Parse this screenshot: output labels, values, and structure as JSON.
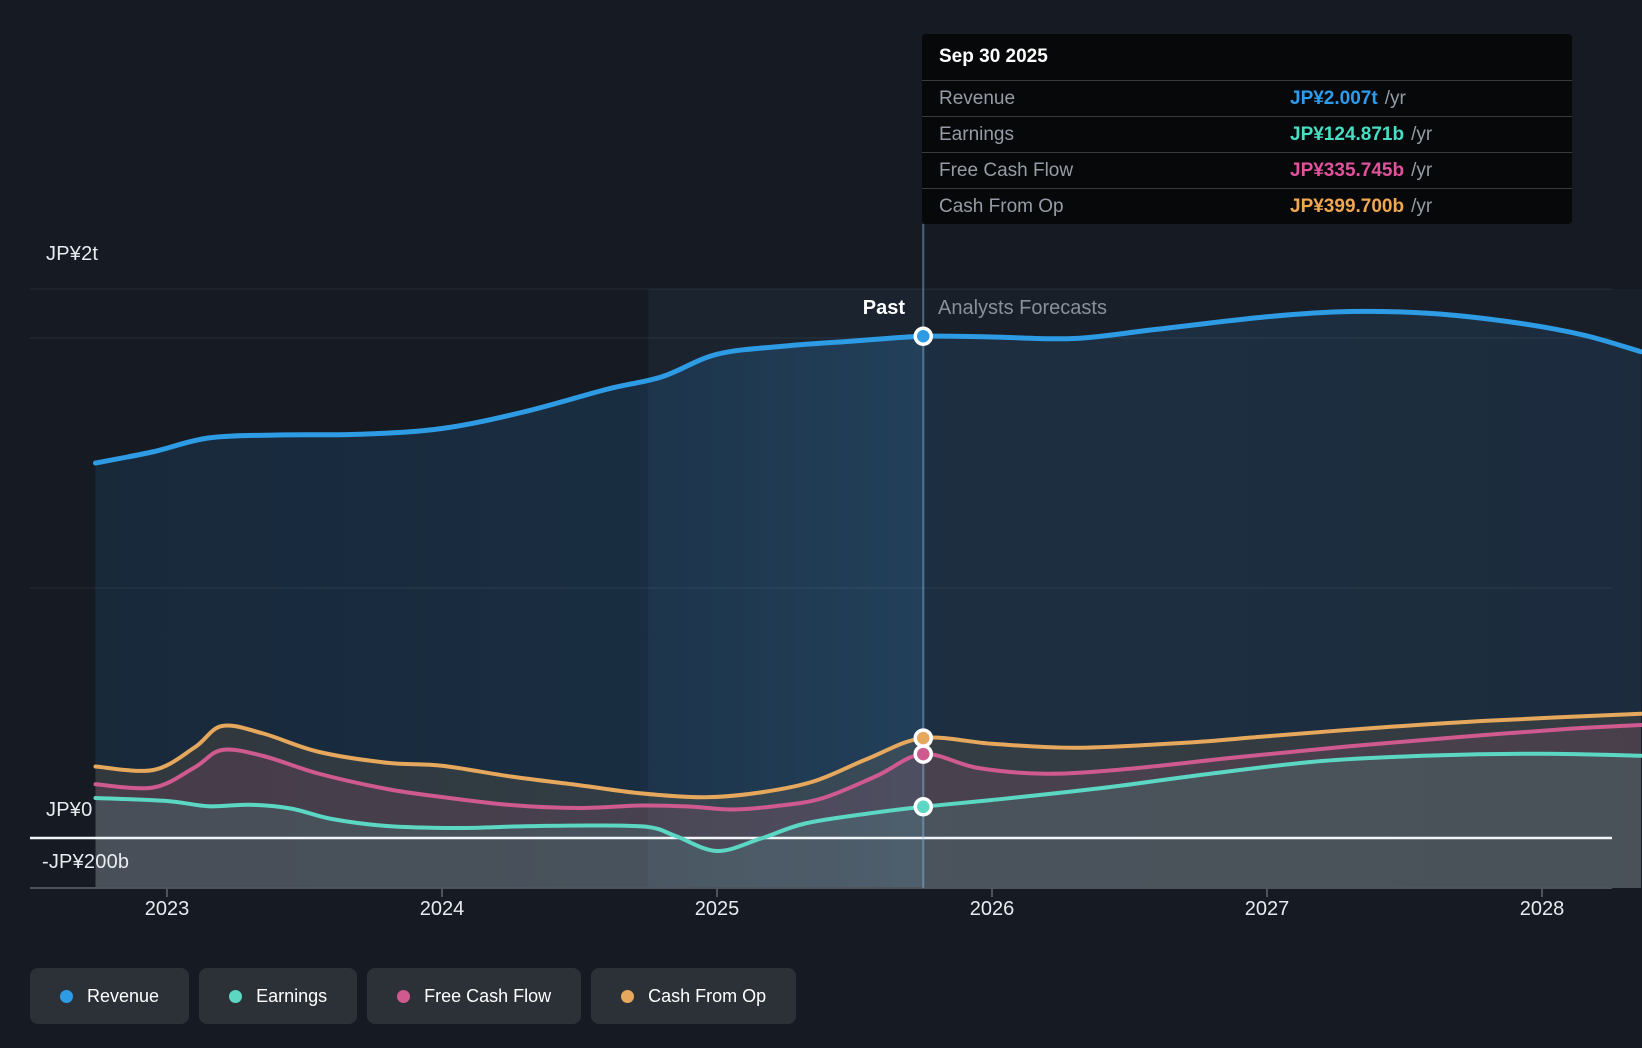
{
  "labels": {
    "past": "Past",
    "forecast": "Analysts Forecasts"
  },
  "tooltip": {
    "date": "Sep 30 2025",
    "rows": [
      {
        "label": "Revenue",
        "value": "JP¥2.007t",
        "suffix": "/yr",
        "color": "#2F9BEC"
      },
      {
        "label": "Earnings",
        "value": "JP¥124.871b",
        "suffix": "/yr",
        "color": "#46DFC4"
      },
      {
        "label": "Free Cash Flow",
        "value": "JP¥335.745b",
        "suffix": "/yr",
        "color": "#E1529D"
      },
      {
        "label": "Cash From Op",
        "value": "JP¥399.700b",
        "suffix": "/yr",
        "color": "#F0A750"
      }
    ]
  },
  "legend": {
    "items": [
      {
        "label": "Revenue",
        "color": "#2E9BE5"
      },
      {
        "label": "Earnings",
        "color": "#5BD7C4"
      },
      {
        "label": "Free Cash Flow",
        "color": "#CE5A90"
      },
      {
        "label": "Cash From Op",
        "color": "#E6A85C"
      }
    ]
  },
  "chart_data": {
    "type": "area",
    "units": "JP¥ billions",
    "x_range": [
      2022.74,
      2028.36
    ],
    "x_ticks": [
      2023,
      2024,
      2025,
      2026,
      2027,
      2028
    ],
    "y_gridlines": [
      {
        "value": 2000,
        "label": "JP¥2t"
      },
      {
        "value": 1000,
        "label": ""
      },
      {
        "value": 0,
        "label": "JP¥0"
      },
      {
        "value": -200,
        "label": "-JP¥200b"
      }
    ],
    "divider_x": 2025.75,
    "highlight_band": [
      2024.75,
      2025.75
    ],
    "series": [
      {
        "key": "revenue",
        "name": "Revenue",
        "color": "#2E9BE5",
        "points": [
          [
            2022.74,
            1500
          ],
          [
            2022.95,
            1545
          ],
          [
            2023.15,
            1600
          ],
          [
            2023.4,
            1612
          ],
          [
            2023.7,
            1615
          ],
          [
            2024.0,
            1638
          ],
          [
            2024.3,
            1705
          ],
          [
            2024.6,
            1795
          ],
          [
            2024.8,
            1845
          ],
          [
            2025.0,
            1935
          ],
          [
            2025.25,
            1968
          ],
          [
            2025.5,
            1988
          ],
          [
            2025.75,
            2007
          ],
          [
            2026.0,
            2004
          ],
          [
            2026.3,
            1998
          ],
          [
            2026.6,
            2035
          ],
          [
            2027.0,
            2085
          ],
          [
            2027.3,
            2106
          ],
          [
            2027.6,
            2098
          ],
          [
            2027.9,
            2062
          ],
          [
            2028.15,
            2012
          ],
          [
            2028.36,
            1945
          ]
        ]
      },
      {
        "key": "cash_from_op",
        "name": "Cash From Op",
        "color": "#E6A85C",
        "points": [
          [
            2022.74,
            286
          ],
          [
            2022.95,
            272
          ],
          [
            2023.1,
            362
          ],
          [
            2023.2,
            448
          ],
          [
            2023.35,
            418
          ],
          [
            2023.55,
            345
          ],
          [
            2023.8,
            301
          ],
          [
            2024.0,
            289
          ],
          [
            2024.25,
            246
          ],
          [
            2024.5,
            211
          ],
          [
            2024.72,
            179
          ],
          [
            2024.95,
            163
          ],
          [
            2025.15,
            181
          ],
          [
            2025.35,
            226
          ],
          [
            2025.55,
            318
          ],
          [
            2025.75,
            399.7
          ],
          [
            2026.0,
            377
          ],
          [
            2026.3,
            361
          ],
          [
            2026.7,
            381
          ],
          [
            2027.0,
            407
          ],
          [
            2027.4,
            441
          ],
          [
            2027.8,
            469
          ],
          [
            2028.36,
            497
          ]
        ]
      },
      {
        "key": "free_cash_flow",
        "name": "Free Cash Flow",
        "color": "#CE5A90",
        "points": [
          [
            2022.74,
            215
          ],
          [
            2022.95,
            202
          ],
          [
            2023.1,
            282
          ],
          [
            2023.2,
            352
          ],
          [
            2023.35,
            328
          ],
          [
            2023.55,
            258
          ],
          [
            2023.8,
            196
          ],
          [
            2024.0,
            164
          ],
          [
            2024.25,
            132
          ],
          [
            2024.5,
            120
          ],
          [
            2024.72,
            130
          ],
          [
            2024.9,
            126
          ],
          [
            2025.05,
            114
          ],
          [
            2025.2,
            126
          ],
          [
            2025.38,
            158
          ],
          [
            2025.58,
            248
          ],
          [
            2025.75,
            335.745
          ],
          [
            2025.95,
            280
          ],
          [
            2026.2,
            257
          ],
          [
            2026.5,
            277
          ],
          [
            2026.9,
            324
          ],
          [
            2027.3,
            367
          ],
          [
            2027.7,
            404
          ],
          [
            2028.1,
            437
          ],
          [
            2028.36,
            452
          ]
        ]
      },
      {
        "key": "earnings",
        "name": "Earnings",
        "color": "#5BD7C4",
        "points": [
          [
            2022.74,
            160
          ],
          [
            2023.0,
            148
          ],
          [
            2023.15,
            127
          ],
          [
            2023.3,
            133
          ],
          [
            2023.45,
            118
          ],
          [
            2023.6,
            76
          ],
          [
            2023.8,
            48
          ],
          [
            2024.05,
            40
          ],
          [
            2024.3,
            47
          ],
          [
            2024.55,
            50
          ],
          [
            2024.75,
            44
          ],
          [
            2024.85,
            8
          ],
          [
            2025.0,
            -52
          ],
          [
            2025.16,
            -2
          ],
          [
            2025.32,
            58
          ],
          [
            2025.55,
            98
          ],
          [
            2025.75,
            124.871
          ],
          [
            2026.0,
            152
          ],
          [
            2026.4,
            200
          ],
          [
            2026.8,
            258
          ],
          [
            2027.2,
            308
          ],
          [
            2027.6,
            330
          ],
          [
            2028.0,
            337
          ],
          [
            2028.36,
            329
          ]
        ]
      }
    ]
  }
}
